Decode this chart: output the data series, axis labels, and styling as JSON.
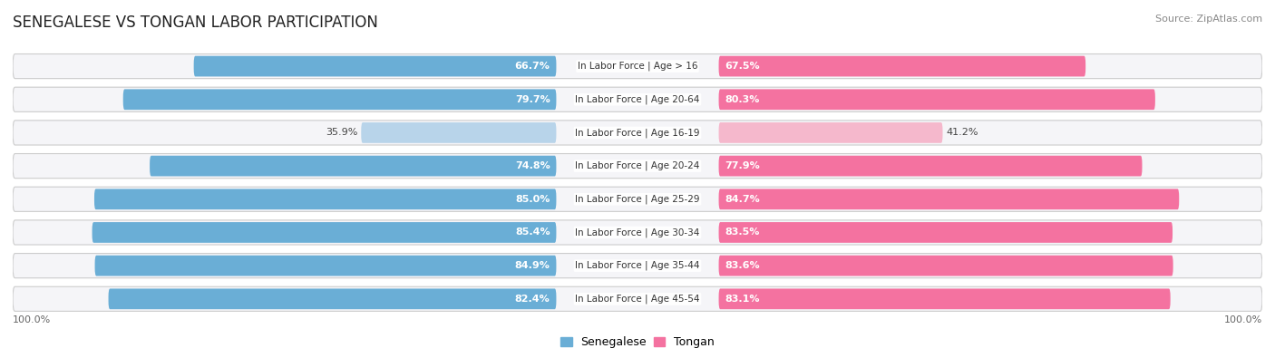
{
  "title": "SENEGALESE VS TONGAN LABOR PARTICIPATION",
  "source": "Source: ZipAtlas.com",
  "categories": [
    "In Labor Force | Age > 16",
    "In Labor Force | Age 20-64",
    "In Labor Force | Age 16-19",
    "In Labor Force | Age 20-24",
    "In Labor Force | Age 25-29",
    "In Labor Force | Age 30-34",
    "In Labor Force | Age 35-44",
    "In Labor Force | Age 45-54"
  ],
  "senegalese": [
    66.7,
    79.7,
    35.9,
    74.8,
    85.0,
    85.4,
    84.9,
    82.4
  ],
  "tongan": [
    67.5,
    80.3,
    41.2,
    77.9,
    84.7,
    83.5,
    83.6,
    83.1
  ],
  "senegalese_color": "#6AAED6",
  "senegalese_color_light": "#B8D4EA",
  "tongan_color": "#F472A0",
  "tongan_color_light": "#F5B8CC",
  "row_bg": "#e8e8ec",
  "row_bg_inner": "#f5f5f8",
  "max_val": 100.0,
  "bar_height": 0.62,
  "title_fontsize": 12,
  "label_fontsize": 8,
  "value_fontsize": 8,
  "legend_fontsize": 9,
  "source_fontsize": 8
}
